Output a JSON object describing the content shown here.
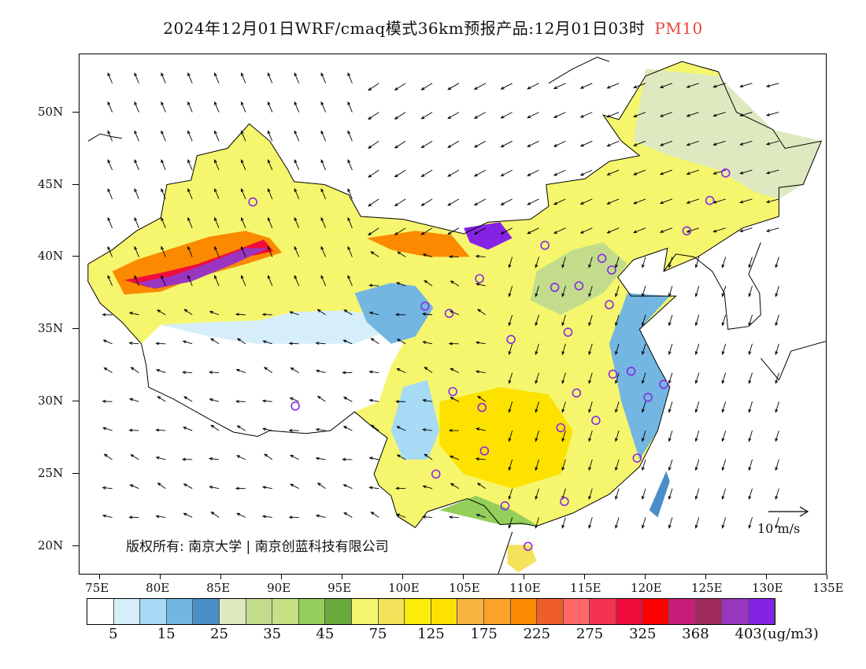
{
  "title": {
    "main": "2024年12月01日WRF/cmaq模式36km预报产品:12月01日03时",
    "variable": "PM10",
    "variable_color": "#e8453c"
  },
  "latitude_labels": [
    "50N",
    "45N",
    "40N",
    "35N",
    "30N",
    "25N",
    "20N"
  ],
  "longitude_labels": [
    "75E",
    "80E",
    "85E",
    "90E",
    "95E",
    "100E",
    "105E",
    "110E",
    "115E",
    "120E",
    "125E",
    "130E",
    "135E"
  ],
  "copyright": "版权所有: 南京大学 | 南京创蓝科技有限公司",
  "wind_scale": {
    "label": "10 m/s",
    "icon": "arrow-right-icon"
  },
  "colorbar": {
    "colors": [
      "#ffffff",
      "#d5eef9",
      "#a6daf5",
      "#73b6e2",
      "#4a8fc8",
      "#dfe9c0",
      "#c2dc8c",
      "#c5e184",
      "#93cf5a",
      "#6aaa3a",
      "#f5f66e",
      "#f3e25a",
      "#fbec0a",
      "#fde200",
      "#f7b441",
      "#faa22a",
      "#fb8a00",
      "#ef5e2a",
      "#fe6866",
      "#f43350",
      "#f00d3c",
      "#fe0000",
      "#c81e7a",
      "#a12a5c",
      "#9a35c0",
      "#8523e4"
    ],
    "labels": [
      "5",
      "15",
      "25",
      "35",
      "45",
      "75",
      "125",
      "175",
      "225",
      "275",
      "325",
      "368",
      "403"
    ],
    "unit": "(ug/m3)"
  },
  "stations": [
    {
      "lon": 87.6,
      "lat": 43.8
    },
    {
      "lon": 91.1,
      "lat": 29.7
    },
    {
      "lon": 101.8,
      "lat": 36.6
    },
    {
      "lon": 103.8,
      "lat": 36.1
    },
    {
      "lon": 106.3,
      "lat": 38.5
    },
    {
      "lon": 111.7,
      "lat": 40.8
    },
    {
      "lon": 112.5,
      "lat": 37.9
    },
    {
      "lon": 114.5,
      "lat": 38.0
    },
    {
      "lon": 116.4,
      "lat": 39.9
    },
    {
      "lon": 117.2,
      "lat": 39.1
    },
    {
      "lon": 117.0,
      "lat": 36.7
    },
    {
      "lon": 113.6,
      "lat": 34.8
    },
    {
      "lon": 108.9,
      "lat": 34.3
    },
    {
      "lon": 104.1,
      "lat": 30.7
    },
    {
      "lon": 106.5,
      "lat": 29.6
    },
    {
      "lon": 114.3,
      "lat": 30.6
    },
    {
      "lon": 117.3,
      "lat": 31.9
    },
    {
      "lon": 118.8,
      "lat": 32.1
    },
    {
      "lon": 121.5,
      "lat": 31.2
    },
    {
      "lon": 120.2,
      "lat": 30.3
    },
    {
      "lon": 115.9,
      "lat": 28.7
    },
    {
      "lon": 113.0,
      "lat": 28.2
    },
    {
      "lon": 106.7,
      "lat": 26.6
    },
    {
      "lon": 102.7,
      "lat": 25.0
    },
    {
      "lon": 108.4,
      "lat": 22.8
    },
    {
      "lon": 113.3,
      "lat": 23.1
    },
    {
      "lon": 119.3,
      "lat": 26.1
    },
    {
      "lon": 110.3,
      "lat": 20.0
    },
    {
      "lon": 123.4,
      "lat": 41.8
    },
    {
      "lon": 125.3,
      "lat": 43.9
    },
    {
      "lon": 126.6,
      "lat": 45.8
    }
  ]
}
